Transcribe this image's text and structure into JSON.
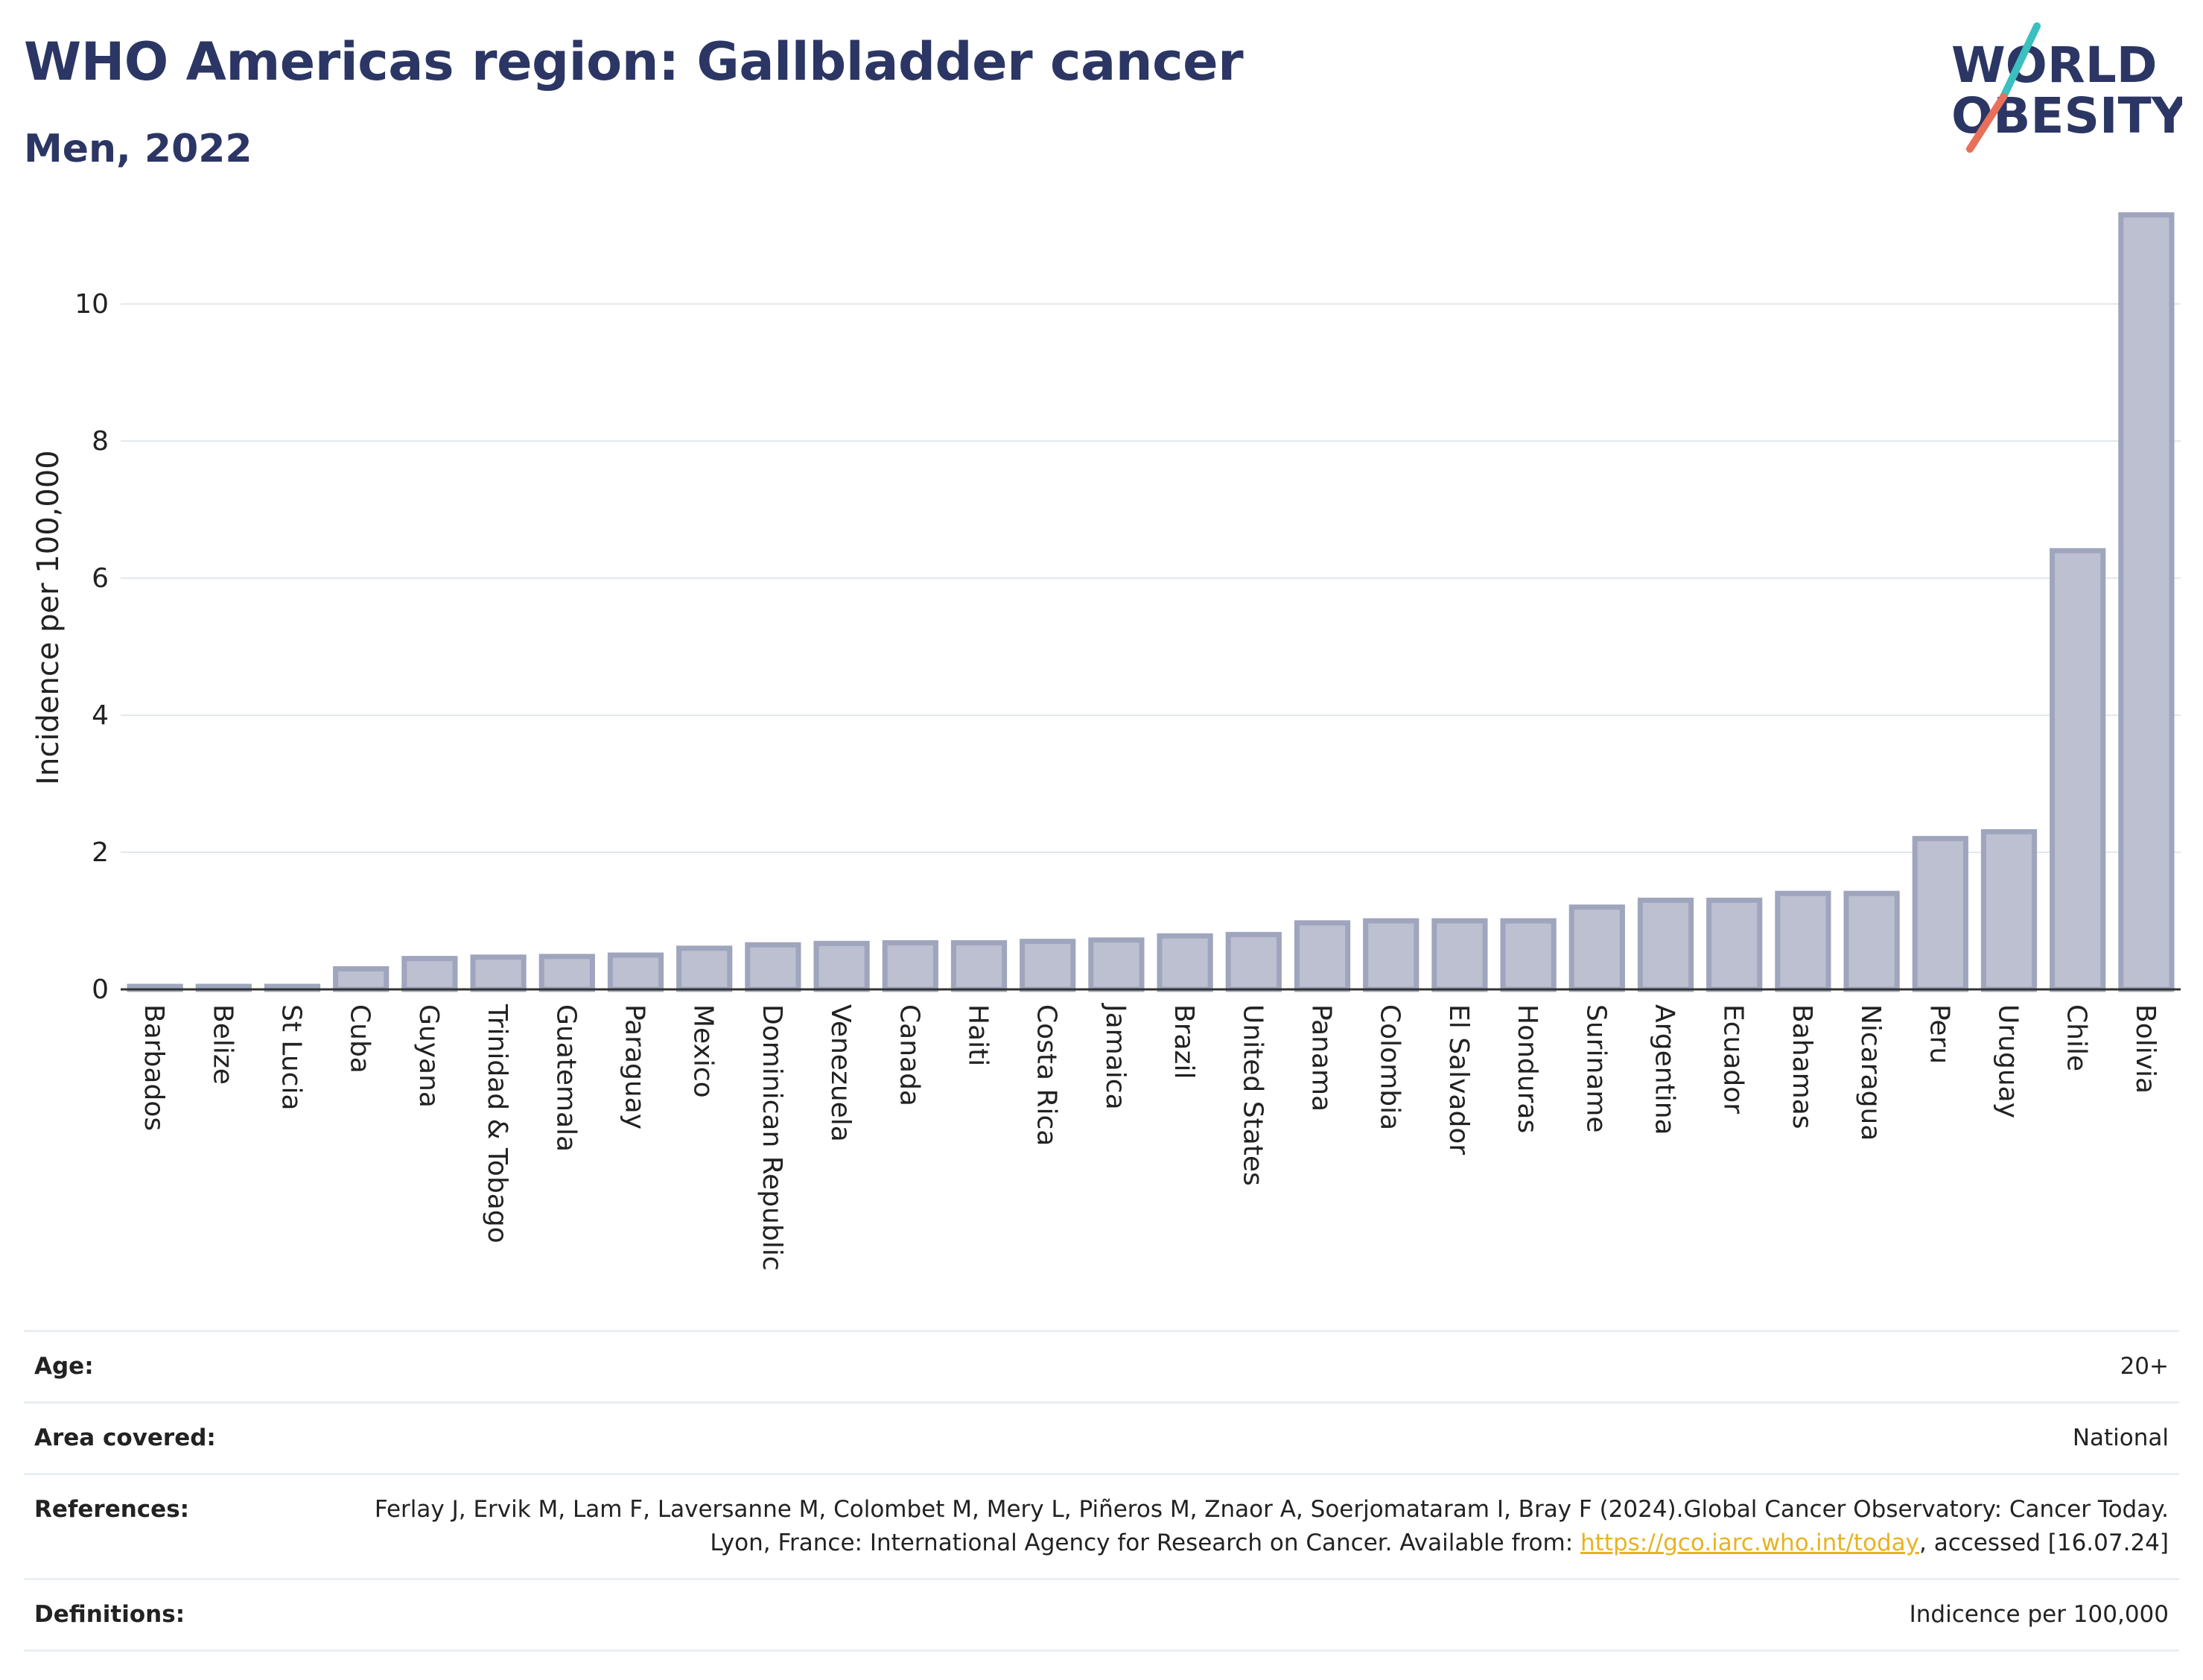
{
  "header": {
    "title": "WHO Americas region: Gallbladder cancer",
    "subtitle": "Men, 2022"
  },
  "logo": {
    "line1": "WORLD",
    "line2": "OBESITY",
    "colors": {
      "text": "#2b3664",
      "slash_top": "#3bbfbf",
      "slash_bottom": "#e8705a"
    }
  },
  "colors": {
    "bar_fill": "#bcc0d0",
    "bar_stroke": "#9fa5bd",
    "axis": "#333333",
    "grid": "#e3e8ee"
  },
  "chart_data": {
    "type": "bar",
    "title": "WHO Americas region: Gallbladder cancer",
    "subtitle": "Men, 2022",
    "xlabel": "",
    "ylabel": "Incidence per 100,000",
    "ylim": [
      0,
      11.5
    ],
    "yticks": [
      0,
      2,
      4,
      6,
      8,
      10
    ],
    "grid": true,
    "categories": [
      "Barbados",
      "Belize",
      "St Lucia",
      "Cuba",
      "Guyana",
      "Trinidad & Tobago",
      "Guatemala",
      "Paraguay",
      "Mexico",
      "Dominican Republic",
      "Venezuela",
      "Canada",
      "Haiti",
      "Costa Rica",
      "Jamaica",
      "Brazil",
      "United States",
      "Panama",
      "Colombia",
      "El Salvador",
      "Honduras",
      "Suriname",
      "Argentina",
      "Ecuador",
      "Bahamas",
      "Nicaragua",
      "Peru",
      "Uruguay",
      "Chile",
      "Bolivia"
    ],
    "values": [
      0.02,
      0.02,
      0.02,
      0.3,
      0.45,
      0.47,
      0.48,
      0.5,
      0.6,
      0.65,
      0.67,
      0.68,
      0.68,
      0.7,
      0.72,
      0.78,
      0.8,
      0.97,
      1.0,
      1.0,
      1.0,
      1.2,
      1.3,
      1.3,
      1.4,
      1.4,
      2.2,
      2.3,
      6.4,
      11.3
    ]
  },
  "meta": {
    "age_label": "Age:",
    "age_value": "20+",
    "area_label": "Area covered:",
    "area_value": "National",
    "references_label": "References:",
    "references_text": "Ferlay J, Ervik M, Lam F, Laversanne M, Colombet M, Mery L, Piñeros M, Znaor A, Soerjomataram I, Bray F (2024).Global Cancer Observatory: Cancer Today. Lyon, France: International Agency for Research on Cancer. Available from: ",
    "references_link": "https://gco.iarc.who.int/today",
    "references_after": ", accessed [16.07.24]",
    "definitions_label": "Definitions:",
    "definitions_value": "Indicence per 100,000"
  }
}
